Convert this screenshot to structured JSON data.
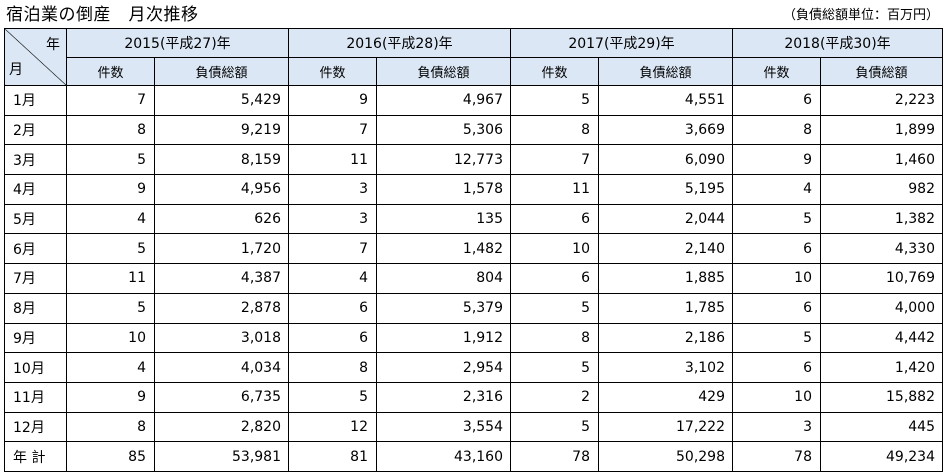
{
  "title": "宿泊業の倒産　月次推移",
  "unit_note": "（負債総額単位：百万円）",
  "corner": {
    "year_label": "年",
    "month_label": "月"
  },
  "years": [
    {
      "label": "2015(平成27)年"
    },
    {
      "label": "2016(平成28)年"
    },
    {
      "label": "2017(平成29)年"
    },
    {
      "label": "2018(平成30)年"
    }
  ],
  "sub_headers": {
    "count": "件数",
    "debt": "負債総額"
  },
  "rows": [
    {
      "month": "1月",
      "c1": "7",
      "d1": "5,429",
      "c2": "9",
      "d2": "4,967",
      "c3": "5",
      "d3": "4,551",
      "c4": "6",
      "d4": "2,223"
    },
    {
      "month": "2月",
      "c1": "8",
      "d1": "9,219",
      "c2": "7",
      "d2": "5,306",
      "c3": "8",
      "d3": "3,669",
      "c4": "8",
      "d4": "1,899"
    },
    {
      "month": "3月",
      "c1": "5",
      "d1": "8,159",
      "c2": "11",
      "d2": "12,773",
      "c3": "7",
      "d3": "6,090",
      "c4": "9",
      "d4": "1,460"
    },
    {
      "month": "4月",
      "c1": "9",
      "d1": "4,956",
      "c2": "3",
      "d2": "1,578",
      "c3": "11",
      "d3": "5,195",
      "c4": "4",
      "d4": "982"
    },
    {
      "month": "5月",
      "c1": "4",
      "d1": "626",
      "c2": "3",
      "d2": "135",
      "c3": "6",
      "d3": "2,044",
      "c4": "5",
      "d4": "1,382"
    },
    {
      "month": "6月",
      "c1": "5",
      "d1": "1,720",
      "c2": "7",
      "d2": "1,482",
      "c3": "10",
      "d3": "2,140",
      "c4": "6",
      "d4": "4,330"
    },
    {
      "month": "7月",
      "c1": "11",
      "d1": "4,387",
      "c2": "4",
      "d2": "804",
      "c3": "6",
      "d3": "1,885",
      "c4": "10",
      "d4": "10,769"
    },
    {
      "month": "8月",
      "c1": "5",
      "d1": "2,878",
      "c2": "6",
      "d2": "5,379",
      "c3": "5",
      "d3": "1,785",
      "c4": "6",
      "d4": "4,000"
    },
    {
      "month": "9月",
      "c1": "10",
      "d1": "3,018",
      "c2": "6",
      "d2": "1,912",
      "c3": "8",
      "d3": "2,186",
      "c4": "5",
      "d4": "4,442"
    },
    {
      "month": "10月",
      "c1": "4",
      "d1": "4,034",
      "c2": "8",
      "d2": "2,954",
      "c3": "5",
      "d3": "3,102",
      "c4": "6",
      "d4": "1,420"
    },
    {
      "month": "11月",
      "c1": "9",
      "d1": "6,735",
      "c2": "5",
      "d2": "2,316",
      "c3": "2",
      "d3": "429",
      "c4": "10",
      "d4": "15,882"
    },
    {
      "month": "12月",
      "c1": "8",
      "d1": "2,820",
      "c2": "12",
      "d2": "3,554",
      "c3": "5",
      "d3": "17,222",
      "c4": "3",
      "d4": "445"
    },
    {
      "month": "年 計",
      "c1": "85",
      "d1": "53,981",
      "c2": "81",
      "d2": "43,160",
      "c3": "78",
      "d3": "50,298",
      "c4": "78",
      "d4": "49,234"
    }
  ],
  "colors": {
    "header_bg": "#dbe7f5",
    "border": "#000000"
  }
}
